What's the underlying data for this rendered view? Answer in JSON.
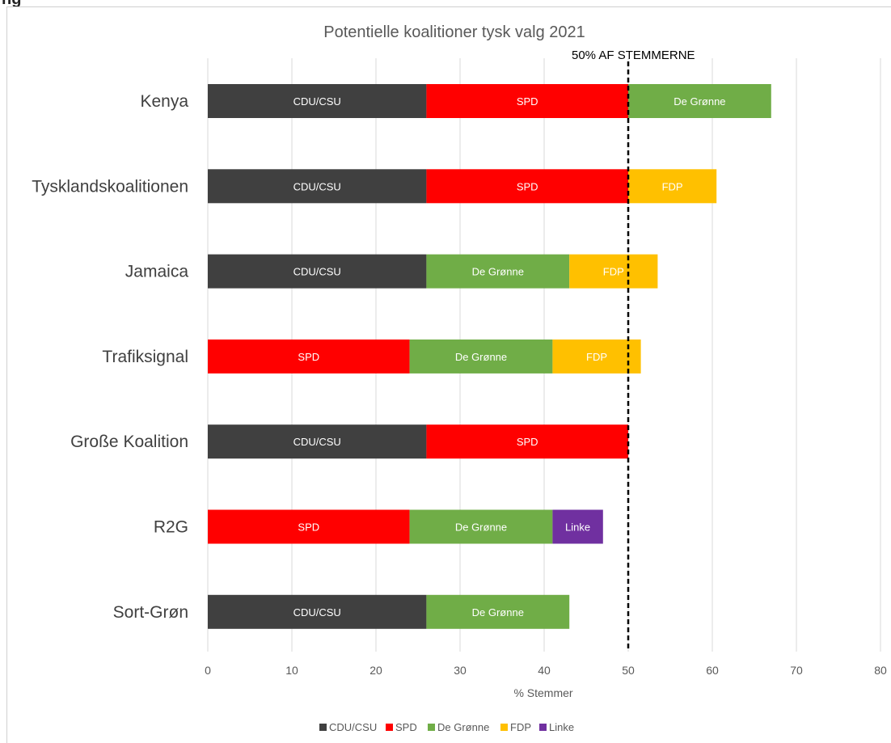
{
  "cut_text": "ng",
  "chart_data": {
    "type": "bar",
    "orientation": "horizontal",
    "stacked": true,
    "title": "Potentielle koalitioner tysk valg 2021",
    "xlabel": "% Stemmer",
    "ylabel": "",
    "xlim": [
      0,
      80
    ],
    "xticks": [
      "0",
      "10",
      "20",
      "30",
      "40",
      "50",
      "60",
      "70",
      "80"
    ],
    "grid": "vertical",
    "legend_position": "bottom",
    "reference_line": {
      "value": 50,
      "label": "50% AF STEMMERNE",
      "style": "dashed"
    },
    "party_colors": {
      "CDU/CSU": "#404040",
      "SPD": "#ff0000",
      "De Grønne": "#70ad47",
      "FDP": "#ffc000",
      "Linke": "#7030a0"
    },
    "legend": [
      "CDU/CSU",
      "SPD",
      "De Grønne",
      "FDP",
      "Linke"
    ],
    "categories": [
      "Kenya",
      "Tysklandskoalitionen",
      "Jamaica",
      "Trafiksignal",
      "Große Koalition",
      "R2G",
      "Sort-Grøn"
    ],
    "bars": [
      {
        "category": "Kenya",
        "segments": [
          {
            "party": "CDU/CSU",
            "value": 26
          },
          {
            "party": "SPD",
            "value": 24
          },
          {
            "party": "De Grønne",
            "value": 17
          }
        ]
      },
      {
        "category": "Tysklandskoalitionen",
        "segments": [
          {
            "party": "CDU/CSU",
            "value": 26
          },
          {
            "party": "SPD",
            "value": 24
          },
          {
            "party": "FDP",
            "value": 10.5
          }
        ]
      },
      {
        "category": "Jamaica",
        "segments": [
          {
            "party": "CDU/CSU",
            "value": 26
          },
          {
            "party": "De Grønne",
            "value": 17
          },
          {
            "party": "FDP",
            "value": 10.5
          }
        ]
      },
      {
        "category": "Trafiksignal",
        "segments": [
          {
            "party": "SPD",
            "value": 24
          },
          {
            "party": "De Grønne",
            "value": 17
          },
          {
            "party": "FDP",
            "value": 10.5
          }
        ]
      },
      {
        "category": "Große Koalition",
        "segments": [
          {
            "party": "CDU/CSU",
            "value": 26
          },
          {
            "party": "SPD",
            "value": 24
          }
        ]
      },
      {
        "category": "R2G",
        "segments": [
          {
            "party": "SPD",
            "value": 24
          },
          {
            "party": "De Grønne",
            "value": 17
          },
          {
            "party": "Linke",
            "value": 6
          }
        ]
      },
      {
        "category": "Sort-Grøn",
        "segments": [
          {
            "party": "CDU/CSU",
            "value": 26
          },
          {
            "party": "De Grønne",
            "value": 17
          }
        ]
      }
    ]
  }
}
